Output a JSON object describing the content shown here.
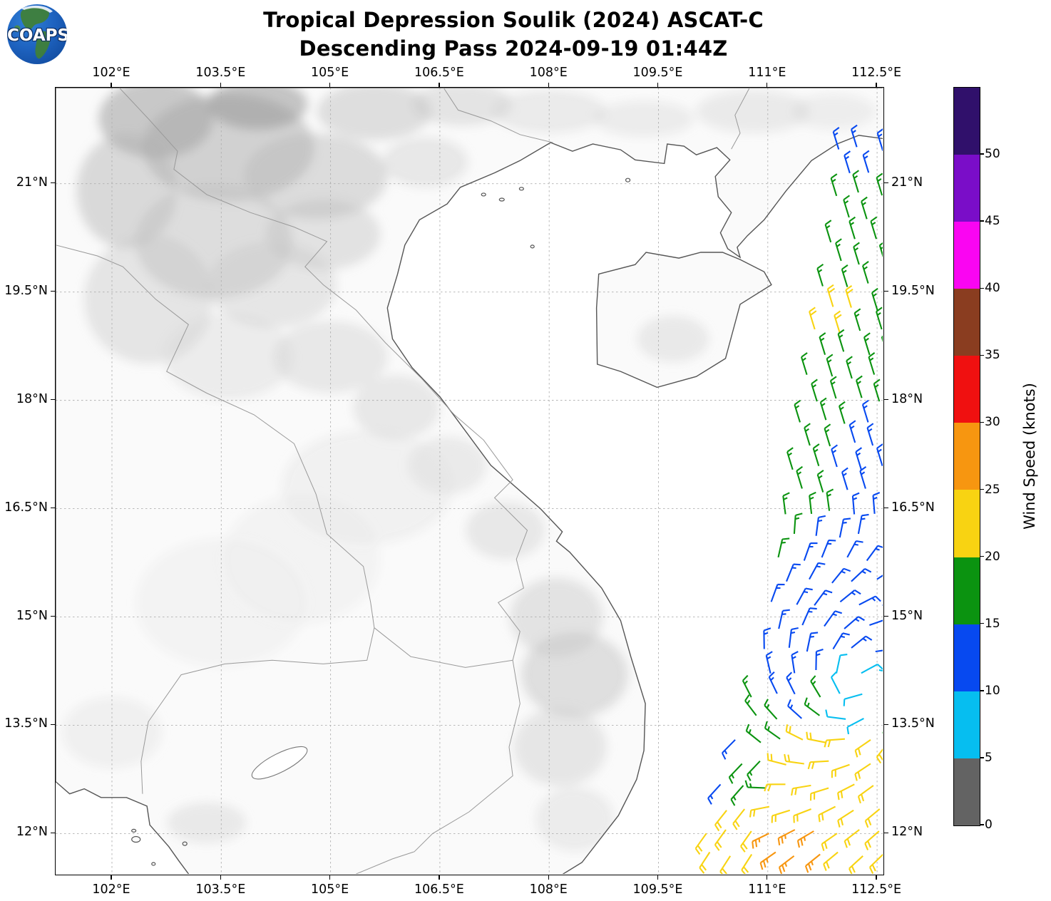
{
  "header": {
    "logo_text": "COAPS",
    "title_line1": "Tropical Depression Soulik (2024) ASCAT-C",
    "title_line2": "Descending Pass 2024-09-19 01:44Z"
  },
  "map_axes": {
    "lon_ticks": [
      {
        "value": 102,
        "label": "102°E"
      },
      {
        "value": 103.5,
        "label": "103.5°E"
      },
      {
        "value": 105,
        "label": "105°E"
      },
      {
        "value": 106.5,
        "label": "106.5°E"
      },
      {
        "value": 108,
        "label": "108°E"
      },
      {
        "value": 109.5,
        "label": "109.5°E"
      },
      {
        "value": 111,
        "label": "111°E"
      },
      {
        "value": 112.5,
        "label": "112.5°E"
      }
    ],
    "lat_ticks": [
      {
        "value": 21,
        "label": "21°N"
      },
      {
        "value": 19.5,
        "label": "19.5°N"
      },
      {
        "value": 18,
        "label": "18°N"
      },
      {
        "value": 16.5,
        "label": "16.5°N"
      },
      {
        "value": 15,
        "label": "15°N"
      },
      {
        "value": 13.5,
        "label": "13.5°N"
      },
      {
        "value": 12,
        "label": "12°N"
      }
    ],
    "lon_range": [
      101.23,
      112.61
    ],
    "lat_range": [
      11.42,
      22.33
    ],
    "grid": "dashed"
  },
  "colorbar": {
    "label": "Wind Speed (knots)",
    "tick_values": [
      0,
      5,
      10,
      15,
      20,
      25,
      30,
      35,
      40,
      45,
      50
    ],
    "segments_bottom_to_top": [
      {
        "range_knots": "0-5",
        "color": "#636363"
      },
      {
        "range_knots": "5-10",
        "color": "#06BEF0"
      },
      {
        "range_knots": "10-15",
        "color": "#0749F0"
      },
      {
        "range_knots": "15-20",
        "color": "#0B9310"
      },
      {
        "range_knots": "20-25",
        "color": "#F8D312"
      },
      {
        "range_knots": "25-30",
        "color": "#F79610"
      },
      {
        "range_knots": "30-35",
        "color": "#F01010"
      },
      {
        "range_knots": "35-40",
        "color": "#8A3D20"
      },
      {
        "range_knots": "40-45",
        "color": "#FA05F2"
      },
      {
        "range_knots": "45-50",
        "color": "#7A0DC8"
      },
      {
        "range_knots": ">50",
        "color": "#30106B"
      }
    ]
  },
  "chart_data": {
    "type": "wind_barb_map",
    "title": "Tropical Depression Soulik (2024) ASCAT-C Descending Pass 2024-09-19 01:44Z",
    "units": "knots",
    "swath": {
      "right_lon": 112.72,
      "top_lat": 21.48,
      "bottom_lat": 11.56,
      "left_edge_lon_by_lat": [
        [
          21.48,
          111.95
        ],
        [
          20.6,
          111.95
        ],
        [
          18.0,
          111.52
        ],
        [
          14.3,
          110.93
        ],
        [
          11.6,
          110.0
        ]
      ],
      "barb_spacing_deg": {
        "dlon": 0.3,
        "dlat": 0.315,
        "row_stagger": 0.15
      }
    },
    "circulation_center": {
      "lon": 112.3,
      "lat": 13.95,
      "note": "weak winds (5-10 kt) at center"
    },
    "ambient_flow": {
      "north_of_15N_from_deg": 343,
      "south_of_13N_from_deg": 222
    },
    "speed_regions_knots": [
      {
        "where": "within 0.45 deg of center",
        "knots": 8
      },
      {
        "where": "top rows lat>21.12",
        "knots": 13
      },
      {
        "where": "pocket 18.7-19.55N 111.35-112.25E",
        "knots": 22
      },
      {
        "where": "broad band 17.75-21.1N",
        "knots": 17
      },
      {
        "where": "17-17.75N east of 111.8E",
        "knots": 13
      },
      {
        "where": "west flank 13.5-17N",
        "knots": 17
      },
      {
        "where": "core region 13.5-17N east side",
        "knots": 13
      },
      {
        "where": "green ring SE of center 13.55-13.9N east of 111.5E",
        "knots": 17
      },
      {
        "where": "south band 11.5-13.5N",
        "knots": 22
      },
      {
        "where": "orange pocket 110.8-111.95E south of 12.32N",
        "knots": 27
      }
    ]
  }
}
